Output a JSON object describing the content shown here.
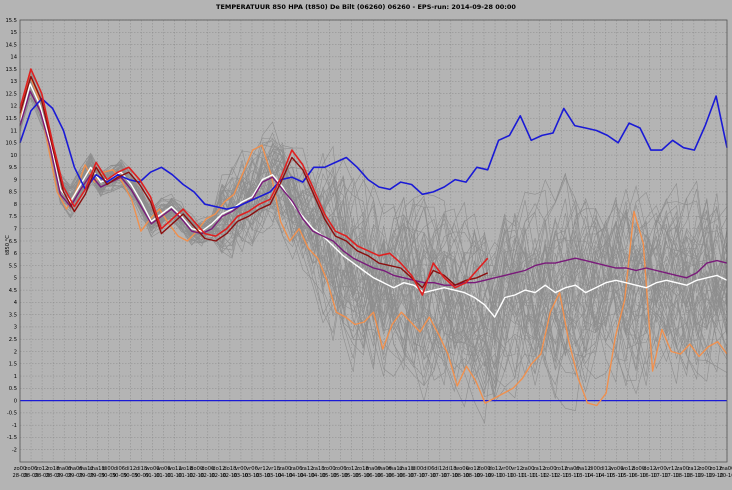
{
  "chart_data": {
    "type": "line",
    "title": "TEMPERATUUR 850 HPA (t850) De Bilt (06260) 06260 - EPS-run: 2014-09-28 00:00",
    "ylabel": "t850 °C",
    "xlabel": "",
    "ylim": [
      -2.5,
      15.5
    ],
    "ytick_step": 0.5,
    "yticks": [
      "-2",
      "-1.5",
      "-1",
      "-0.5",
      "0",
      "0.5",
      "1",
      "1.5",
      "2",
      "2.5",
      "3",
      "3.5",
      "4",
      "4.5",
      "5",
      "5.5",
      "6",
      "6.5",
      "7",
      "7.5",
      "8",
      "8.5",
      "9",
      "9.5",
      "10",
      "10.5",
      "11",
      "11.5",
      "12",
      "12.5",
      "13",
      "13.5",
      "14",
      "14.5",
      "15",
      "15.5"
    ],
    "grid": true,
    "x_top": [
      "zo00",
      "zo06",
      "zo12",
      "zo18",
      "ma00",
      "ma06",
      "ma12",
      "ma18",
      "di00",
      "di06",
      "di12",
      "di18",
      "wo00",
      "wo06",
      "wo12",
      "wo18",
      "do00",
      "do06",
      "do12",
      "do18",
      "vr00",
      "vr06",
      "vr12",
      "vr18",
      "za00",
      "za06",
      "za12",
      "za18",
      "zo00",
      "zo06",
      "zo12",
      "zo18",
      "ma00",
      "ma06",
      "ma12",
      "ma18",
      "di00",
      "di06",
      "di12",
      "di18",
      "wo00",
      "wo12",
      "do00",
      "do12",
      "vr00",
      "vr12",
      "za00",
      "za12",
      "zo00",
      "zo12",
      "ma00",
      "ma12",
      "di00",
      "di12",
      "wo00",
      "wo12",
      "do00",
      "do12",
      "vr00",
      "vr12",
      "za00",
      "za12",
      "zo00",
      "zo12",
      "ma00"
    ],
    "x_bottom": [
      "28-09",
      "28-09",
      "28-09",
      "28-09",
      "29-09",
      "29-09",
      "29-09",
      "29-09",
      "30-09",
      "30-09",
      "30-09",
      "30-09",
      "01-10",
      "01-10",
      "01-10",
      "01-10",
      "02-10",
      "02-10",
      "02-10",
      "02-10",
      "03-10",
      "03-10",
      "03-10",
      "03-10",
      "04-10",
      "04-10",
      "04-10",
      "04-10",
      "05-10",
      "05-10",
      "05-10",
      "05-10",
      "06-10",
      "06-10",
      "06-10",
      "06-10",
      "07-10",
      "07-10",
      "07-10",
      "07-10",
      "08-10",
      "08-10",
      "09-10",
      "09-10",
      "10-10",
      "10-10",
      "11-10",
      "11-10",
      "12-10",
      "12-10",
      "13-10",
      "13-10",
      "14-10",
      "14-10",
      "15-10",
      "15-10",
      "16-10",
      "16-10",
      "17-10",
      "17-10",
      "18-10",
      "18-10",
      "19-10",
      "19-10",
      "20-10"
    ],
    "n_members": 51,
    "series": [
      {
        "role": "climatology",
        "color": "#1a1ad6",
        "values": [
          10.5,
          11.8,
          12.3,
          11.9,
          11.0,
          9.5,
          8.6,
          9.2,
          8.9,
          9.2,
          9.0,
          8.9,
          9.3,
          9.5,
          9.2,
          8.8,
          8.5,
          8.0,
          7.9,
          7.8,
          7.9,
          8.1,
          8.3,
          8.5,
          9.0,
          9.1,
          8.9,
          9.5,
          9.5,
          9.7,
          9.9,
          9.5,
          9.0,
          8.7,
          8.6,
          8.9,
          8.8,
          8.4,
          8.5,
          8.7,
          9.0,
          8.9,
          9.5,
          9.4,
          10.6,
          10.8,
          11.6,
          10.6,
          10.8,
          10.9,
          11.9,
          11.2,
          11.1,
          11.0,
          10.8,
          10.5,
          11.3,
          11.1,
          10.2,
          10.2,
          10.6,
          10.3,
          10.2,
          11.2,
          12.4,
          10.3
        ]
      },
      {
        "role": "control",
        "color": "#e02020",
        "values": [
          11.9,
          13.5,
          12.5,
          10.5,
          8.7,
          7.9,
          8.6,
          9.7,
          9.0,
          9.3,
          9.5,
          9.0,
          8.3,
          7.0,
          7.4,
          7.8,
          7.3,
          6.8,
          6.7,
          7.0,
          7.5,
          7.7,
          8.0,
          8.2,
          9.1,
          10.2,
          9.6,
          8.6,
          7.6,
          6.9,
          6.7,
          6.3,
          6.1,
          5.9,
          6.0,
          5.6,
          5.1,
          4.3,
          5.6,
          5.0,
          4.6,
          4.8,
          5.3,
          5.8
        ]
      },
      {
        "role": "operational",
        "color": "#8b0e0e",
        "values": [
          11.7,
          13.2,
          12.2,
          10.3,
          8.5,
          7.7,
          8.4,
          9.5,
          8.8,
          9.1,
          9.3,
          8.8,
          8.1,
          6.8,
          7.2,
          7.6,
          7.1,
          6.6,
          6.5,
          6.8,
          7.3,
          7.5,
          7.8,
          8.0,
          8.9,
          9.9,
          9.4,
          8.4,
          7.4,
          6.7,
          6.5,
          6.1,
          5.9,
          5.6,
          5.5,
          5.4,
          5.0,
          4.6,
          5.3,
          5.1,
          4.7,
          4.9,
          5.0,
          5.2
        ]
      },
      {
        "role": "member-highlight",
        "color": "#f0904e",
        "values": [
          11.5,
          13.3,
          12.3,
          10.4,
          8.5,
          7.8,
          8.5,
          9.6,
          8.9,
          9.3,
          9.4,
          8.9,
          8.2,
          6.9,
          7.4,
          7.8,
          7.2,
          6.7,
          6.5,
          6.9,
          7.4,
          7.6,
          8.1,
          8.4,
          9.3,
          10.2,
          10.4,
          9.2,
          7.3,
          6.5,
          7.0,
          6.2,
          5.8,
          4.9,
          3.6,
          3.4,
          3.1,
          3.2,
          3.6,
          2.1,
          3.1,
          3.6,
          3.2,
          2.8,
          3.4,
          2.7,
          1.9,
          0.6,
          1.4,
          0.8,
          -0.1,
          0.1,
          0.3,
          0.5,
          0.9,
          1.5,
          1.9,
          3.6,
          4.4,
          2.4,
          0.9,
          -0.1,
          -0.2,
          0.3,
          2.6,
          4.1,
          7.7,
          6.4,
          1.2,
          2.9,
          2.0,
          1.9,
          2.3,
          1.8,
          2.2,
          2.4,
          1.9
        ]
      },
      {
        "role": "ensemble-mean",
        "color": "#ffffff",
        "values": [
          11.3,
          12.9,
          12.0,
          10.5,
          8.6,
          8.1,
          8.8,
          9.5,
          8.9,
          9.1,
          9.3,
          8.8,
          8.1,
          7.3,
          7.6,
          7.9,
          7.5,
          7.0,
          6.9,
          7.2,
          7.6,
          7.8,
          8.1,
          8.3,
          9.0,
          9.2,
          8.7,
          8.0,
          7.5,
          7.0,
          6.7,
          6.3,
          5.9,
          5.6,
          5.3,
          5.0,
          4.8,
          4.6,
          4.8,
          4.7,
          4.4,
          4.5,
          4.6,
          4.5,
          4.4,
          4.2,
          3.9,
          3.4,
          4.2,
          4.3,
          4.5,
          4.4,
          4.7,
          4.4,
          4.6,
          4.7,
          4.4,
          4.6,
          4.8,
          4.9,
          4.8,
          4.7,
          4.6,
          4.8,
          4.9,
          4.8,
          4.7,
          4.9,
          5.0,
          5.1,
          4.9
        ]
      },
      {
        "role": "ensemble-median",
        "color": "#7a1a7a",
        "values": [
          11.2,
          12.6,
          11.8,
          10.3,
          8.4,
          7.9,
          8.6,
          9.2,
          8.7,
          8.9,
          9.1,
          8.6,
          7.9,
          7.2,
          7.5,
          7.8,
          7.4,
          6.9,
          6.8,
          7.0,
          7.5,
          7.7,
          8.0,
          8.2,
          8.9,
          9.1,
          8.6,
          8.1,
          7.4,
          6.9,
          6.7,
          6.5,
          6.1,
          5.8,
          5.6,
          5.4,
          5.3,
          5.1,
          5.0,
          4.9,
          4.8,
          4.8,
          4.7,
          4.7,
          4.8,
          4.8,
          4.9,
          5.0,
          5.1,
          5.2,
          5.3,
          5.5,
          5.6,
          5.6,
          5.7,
          5.8,
          5.7,
          5.6,
          5.5,
          5.4,
          5.4,
          5.3,
          5.4,
          5.3,
          5.2,
          5.1,
          5.0,
          5.2,
          5.6,
          5.7,
          5.6
        ]
      }
    ],
    "zero_line": {
      "y": 0,
      "color": "#1a1ad6"
    }
  }
}
